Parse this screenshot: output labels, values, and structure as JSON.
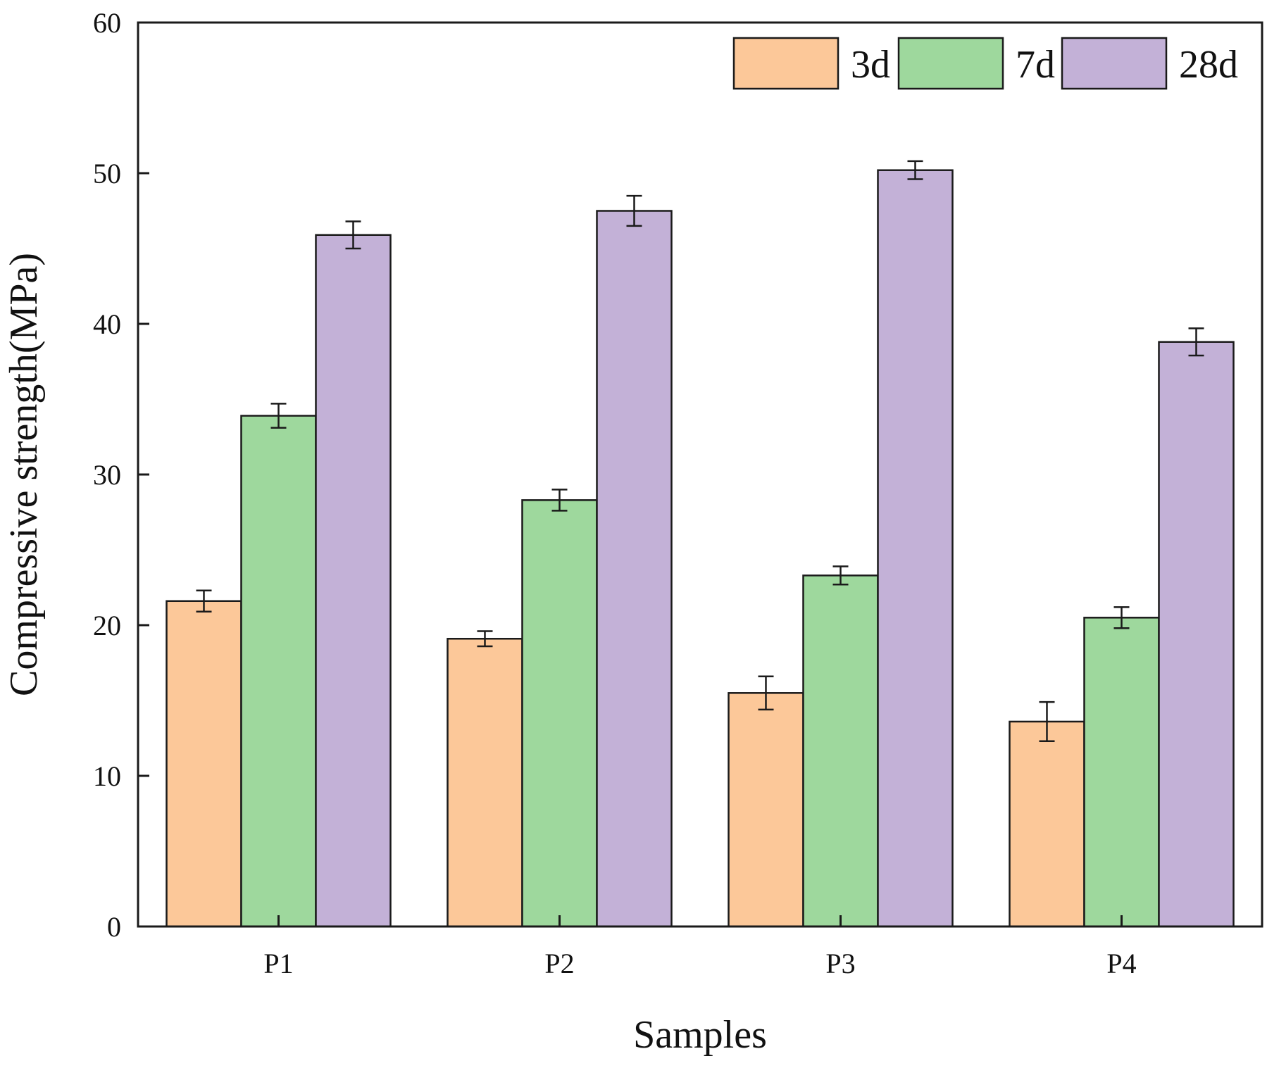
{
  "chart_data": {
    "type": "bar",
    "title": "",
    "xlabel": "Samples",
    "ylabel": "Compressive strength(MPa)",
    "ylim": [
      0,
      60
    ],
    "yticks": [
      0,
      10,
      20,
      30,
      40,
      50,
      60
    ],
    "categories": [
      "P1",
      "P2",
      "P3",
      "P4"
    ],
    "series": [
      {
        "name": "3d",
        "color": "#fcc899",
        "values": [
          21.6,
          19.1,
          15.5,
          13.6
        ],
        "errors": [
          0.7,
          0.5,
          1.1,
          1.3
        ]
      },
      {
        "name": "7d",
        "color": "#9ed89d",
        "values": [
          33.9,
          28.3,
          23.3,
          20.5
        ],
        "errors": [
          0.8,
          0.7,
          0.6,
          0.7
        ]
      },
      {
        "name": "28d",
        "color": "#c3b1d7",
        "values": [
          45.9,
          47.5,
          50.2,
          38.8
        ],
        "errors": [
          0.9,
          1.0,
          0.6,
          0.9
        ]
      }
    ],
    "legend": {
      "position": "top-right",
      "orientation": "horizontal"
    },
    "grid": false,
    "error_bars": true
  }
}
